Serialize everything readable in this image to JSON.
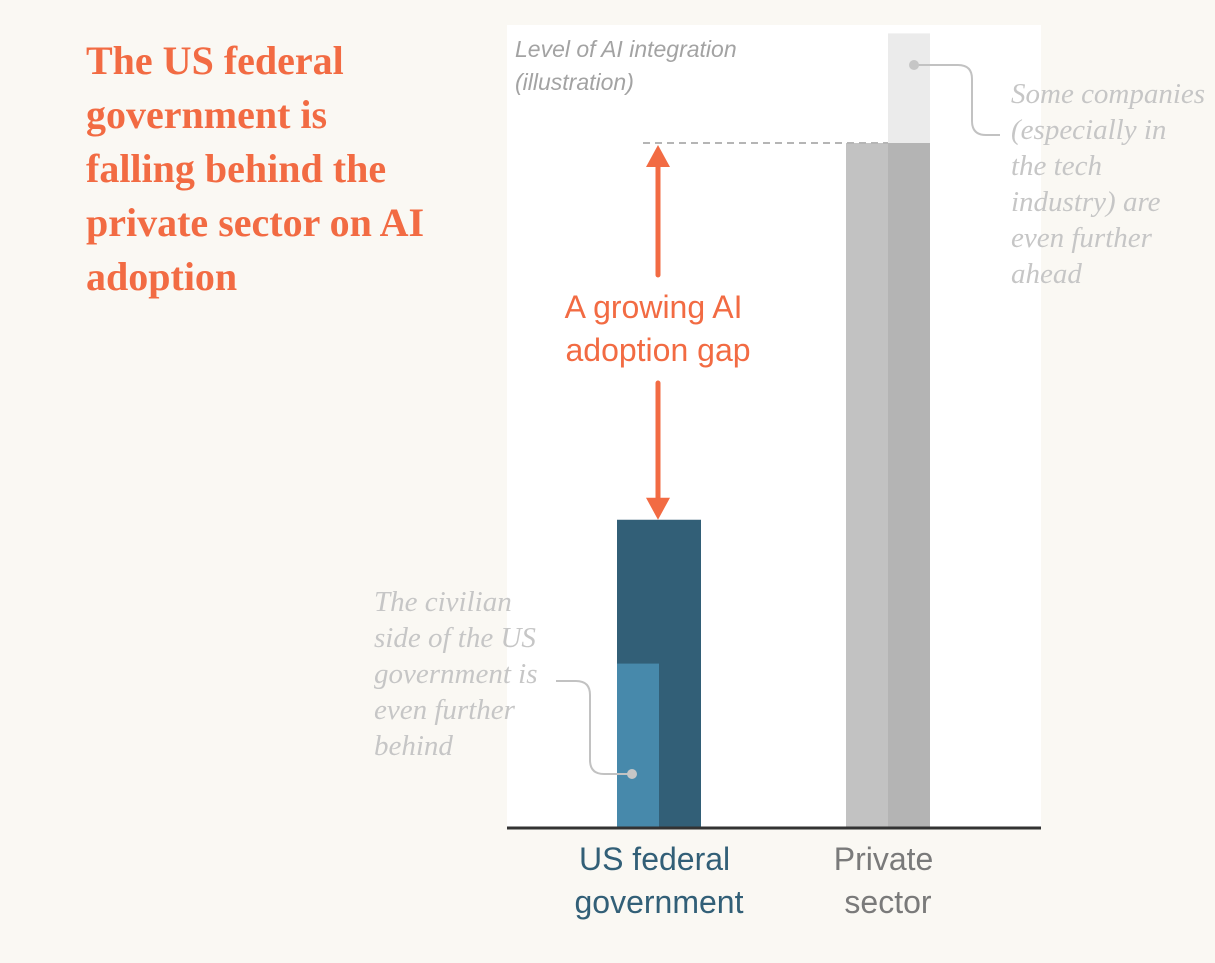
{
  "headline": "The US federal government is falling behind the private sector on AI adoption",
  "chart_data": {
    "type": "bar",
    "title": "The US federal government is falling behind the private sector on AI adoption",
    "ylabel_lines": [
      "Level of AI integration",
      "(illustration)"
    ],
    "ylim": [
      0,
      100
    ],
    "categories": [
      {
        "name": "US federal government",
        "label_lines": [
          "US federal",
          "government"
        ],
        "value": 45
      },
      {
        "name": "Private sector",
        "label_lines": [
          "Private",
          "sector"
        ],
        "value": 100
      }
    ],
    "sub_bars": [
      {
        "name": "Civilian side of the US government",
        "category": 0,
        "value": 24
      },
      {
        "name": "Tech-industry companies",
        "category": 1,
        "value": 116
      }
    ],
    "gap_label_lines": [
      "A growing AI",
      "adoption gap"
    ],
    "annotations": {
      "civilian": [
        "The civilian",
        "side of the US",
        "government is",
        "even further",
        "behind"
      ],
      "tech": [
        "Some companies",
        "(especially in",
        "the tech",
        "industry) are",
        "even further",
        "ahead"
      ]
    },
    "colors": {
      "gov_dark": "#325f77",
      "gov_light": "#4789ab",
      "private_light": "#c2c2c2",
      "private_dark": "#b4b4b4",
      "private_top": "#ebebeb",
      "accent": "#f26b43",
      "axis": "#333333",
      "gov_label": "#325f77",
      "private_label": "#7a7a7a",
      "plot_bg": "#ffffff",
      "page_bg": "#faf8f3"
    }
  }
}
